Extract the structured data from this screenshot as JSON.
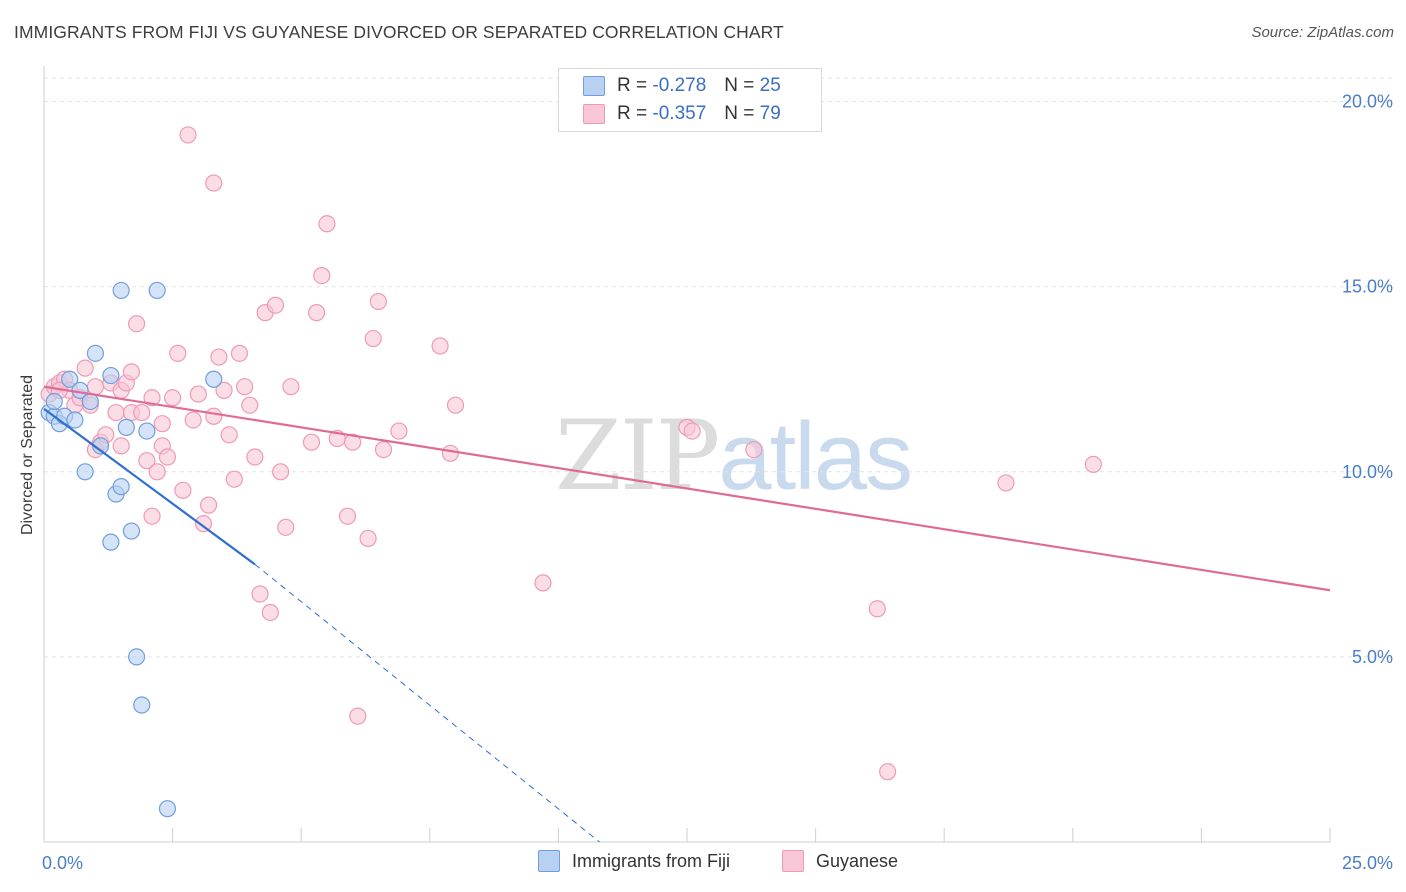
{
  "title": "IMMIGRANTS FROM FIJI VS GUYANESE DIVORCED OR SEPARATED CORRELATION CHART",
  "source": "Source: ZipAtlas.com",
  "watermark": {
    "zip": "ZIP",
    "atlas": "atlas"
  },
  "legend": {
    "r_label": "R =",
    "n_label": "N =",
    "rows": [
      {
        "r": "-0.278",
        "n": "25"
      },
      {
        "r": "-0.357",
        "n": "79"
      }
    ]
  },
  "colors": {
    "fiji_fill": "#b8d0f2",
    "fiji_stroke": "#6f9fdc",
    "fiji_line": "#2f6fd0",
    "guyanese_fill": "#f8c6d6",
    "guyanese_stroke": "#ee9ab6",
    "guyanese_line": "#e06a96",
    "tick_text": "#4a7ec9",
    "grid": "#e3e3e3"
  },
  "chart_data": {
    "type": "scatter",
    "title": "IMMIGRANTS FROM FIJI VS GUYANESE DIVORCED OR SEPARATED CORRELATION CHART",
    "xlabel": "",
    "ylabel": "Divorced or Separated",
    "xlim": [
      0,
      25
    ],
    "ylim": [
      0,
      20.8
    ],
    "x_tick_labels": [
      "0.0%",
      "25.0%"
    ],
    "y_ticks": [
      5,
      10,
      15,
      20
    ],
    "y_tick_labels": [
      "5.0%",
      "10.0%",
      "15.0%",
      "20.0%"
    ],
    "grid": true,
    "legend_position": "bottom",
    "series": [
      {
        "name": "Immigrants from Fiji",
        "points": [
          [
            0.1,
            11.6
          ],
          [
            0.2,
            11.5
          ],
          [
            0.3,
            11.3
          ],
          [
            0.4,
            11.5
          ],
          [
            0.5,
            12.5
          ],
          [
            0.6,
            11.4
          ],
          [
            0.7,
            12.2
          ],
          [
            0.8,
            10.0
          ],
          [
            0.9,
            11.9
          ],
          [
            1.0,
            13.2
          ],
          [
            1.1,
            10.7
          ],
          [
            1.3,
            12.6
          ],
          [
            1.3,
            8.1
          ],
          [
            1.4,
            9.4
          ],
          [
            1.5,
            9.6
          ],
          [
            1.5,
            14.9
          ],
          [
            1.6,
            11.2
          ],
          [
            1.7,
            8.4
          ],
          [
            1.8,
            5.0
          ],
          [
            1.9,
            3.7
          ],
          [
            2.0,
            11.1
          ],
          [
            2.2,
            14.9
          ],
          [
            2.4,
            0.9
          ],
          [
            3.3,
            12.5
          ],
          [
            0.2,
            11.9
          ]
        ]
      },
      {
        "name": "Guyanese",
        "points": [
          [
            0.1,
            12.1
          ],
          [
            0.2,
            12.3
          ],
          [
            0.3,
            12.4
          ],
          [
            0.4,
            12.5
          ],
          [
            0.5,
            12.2
          ],
          [
            0.6,
            11.8
          ],
          [
            0.7,
            12.0
          ],
          [
            0.8,
            12.8
          ],
          [
            0.9,
            11.8
          ],
          [
            1.0,
            12.3
          ],
          [
            1.0,
            10.6
          ],
          [
            1.1,
            10.8
          ],
          [
            1.2,
            11.0
          ],
          [
            1.3,
            12.4
          ],
          [
            1.4,
            11.6
          ],
          [
            1.5,
            10.7
          ],
          [
            1.5,
            12.2
          ],
          [
            1.6,
            12.4
          ],
          [
            1.7,
            11.6
          ],
          [
            1.7,
            12.7
          ],
          [
            1.8,
            14.0
          ],
          [
            1.9,
            11.6
          ],
          [
            2.0,
            10.3
          ],
          [
            2.1,
            12.0
          ],
          [
            2.1,
            8.8
          ],
          [
            2.2,
            10.0
          ],
          [
            2.3,
            11.3
          ],
          [
            2.3,
            10.7
          ],
          [
            2.4,
            10.4
          ],
          [
            2.5,
            12.0
          ],
          [
            2.6,
            13.2
          ],
          [
            2.7,
            9.5
          ],
          [
            2.8,
            19.1
          ],
          [
            2.9,
            11.4
          ],
          [
            3.0,
            12.1
          ],
          [
            3.1,
            8.6
          ],
          [
            3.2,
            9.1
          ],
          [
            3.3,
            11.5
          ],
          [
            3.4,
            13.1
          ],
          [
            3.5,
            12.2
          ],
          [
            3.6,
            11.0
          ],
          [
            3.7,
            9.8
          ],
          [
            3.8,
            13.2
          ],
          [
            3.9,
            12.3
          ],
          [
            4.0,
            11.8
          ],
          [
            4.1,
            10.4
          ],
          [
            4.2,
            6.7
          ],
          [
            4.3,
            14.3
          ],
          [
            4.4,
            6.2
          ],
          [
            4.5,
            14.5
          ],
          [
            4.6,
            10.0
          ],
          [
            4.7,
            8.5
          ],
          [
            4.8,
            12.3
          ],
          [
            5.2,
            10.8
          ],
          [
            5.3,
            14.3
          ],
          [
            5.4,
            15.3
          ],
          [
            5.5,
            16.7
          ],
          [
            5.7,
            10.9
          ],
          [
            5.9,
            8.8
          ],
          [
            6.0,
            10.8
          ],
          [
            6.1,
            3.4
          ],
          [
            6.3,
            8.2
          ],
          [
            6.4,
            13.6
          ],
          [
            6.5,
            14.6
          ],
          [
            6.6,
            10.6
          ],
          [
            6.9,
            11.1
          ],
          [
            7.7,
            13.4
          ],
          [
            7.9,
            10.5
          ],
          [
            8.0,
            11.8
          ],
          [
            9.7,
            7.0
          ],
          [
            12.5,
            11.2
          ],
          [
            12.6,
            11.1
          ],
          [
            13.8,
            10.6
          ],
          [
            16.2,
            6.3
          ],
          [
            16.4,
            1.9
          ],
          [
            18.7,
            9.7
          ],
          [
            20.4,
            10.2
          ],
          [
            3.3,
            17.8
          ],
          [
            0.3,
            12.2
          ]
        ]
      }
    ],
    "trendlines": [
      {
        "series": "Immigrants from Fiji",
        "x": [
          0.0,
          4.1
        ],
        "y": [
          11.7,
          7.5
        ],
        "extended_to": [
          10.8,
          0.0
        ],
        "extension_style": "dashed"
      },
      {
        "series": "Guyanese",
        "x": [
          0.0,
          25.0
        ],
        "y": [
          12.3,
          6.8
        ]
      }
    ]
  }
}
